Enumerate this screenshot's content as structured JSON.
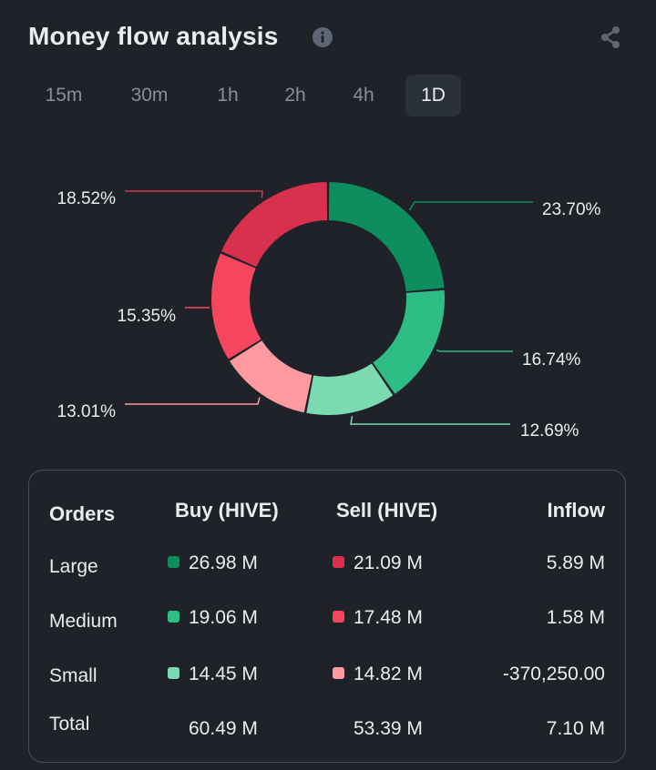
{
  "header": {
    "title": "Money flow analysis"
  },
  "icons": {
    "info": "info-icon",
    "share": "share-icon"
  },
  "tabs": [
    {
      "label": "15m",
      "active": false
    },
    {
      "label": "30m",
      "active": false
    },
    {
      "label": "1h",
      "active": false
    },
    {
      "label": "2h",
      "active": false
    },
    {
      "label": "4h",
      "active": false
    },
    {
      "label": "1D",
      "active": true
    }
  ],
  "colors": {
    "buy_large": "#0e8d5f",
    "buy_medium": "#2ebd85",
    "buy_small": "#7bdab0",
    "sell_large": "#d9304e",
    "sell_medium": "#f6465d",
    "sell_small": "#ff9aa0",
    "background": "#1f2329"
  },
  "chart_data": {
    "type": "pie",
    "labels": [
      "23.70%",
      "16.74%",
      "12.69%",
      "13.01%",
      "15.35%",
      "18.52%"
    ],
    "values": [
      23.7,
      16.74,
      12.69,
      13.01,
      15.35,
      18.52
    ],
    "colors": [
      "#0e8d5f",
      "#2ebd85",
      "#7bdab0",
      "#ff9aa0",
      "#f6465d",
      "#d9304e"
    ]
  },
  "table": {
    "headers": {
      "orders": "Orders",
      "buy": "Buy (HIVE)",
      "sell": "Sell (HIVE)",
      "inflow": "Inflow"
    },
    "rows": [
      {
        "order": "Large",
        "buy": "26.98 M",
        "sell": "21.09 M",
        "inflow": "5.89 M"
      },
      {
        "order": "Medium",
        "buy": "19.06 M",
        "sell": "17.48 M",
        "inflow": "1.58 M"
      },
      {
        "order": "Small",
        "buy": "14.45 M",
        "sell": "14.82 M",
        "inflow": "-370,250.00"
      },
      {
        "order": "Total",
        "buy": "60.49 M",
        "sell": "53.39 M",
        "inflow": "7.10 M"
      }
    ]
  }
}
